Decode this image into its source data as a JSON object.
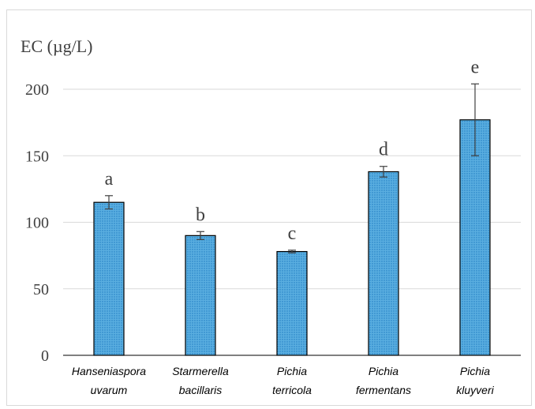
{
  "chart_data": {
    "type": "bar",
    "ylabel": "EC (µg/L)",
    "ylim": [
      0,
      200
    ],
    "yticks": [
      "0",
      "50",
      "100",
      "150",
      "200"
    ],
    "grid": true,
    "categories": [
      [
        "Hanseniaspora",
        "uvarum"
      ],
      [
        "Starmerella",
        "bacillaris"
      ],
      [
        "Pichia",
        "terricola"
      ],
      [
        "Pichia",
        "fermentans"
      ],
      [
        "Pichia",
        "kluyveri"
      ]
    ],
    "values": [
      115,
      90,
      78,
      138,
      177
    ],
    "errors": [
      5,
      3,
      1,
      4,
      27
    ],
    "significance_labels": [
      "a",
      "b",
      "c",
      "d",
      "e"
    ],
    "colors": {
      "bar_fill": "#5aaee0",
      "bar_dot": "#1b78c0",
      "bar_stroke": "#000000",
      "grid": "#d9d9d9",
      "error": "#404040"
    }
  }
}
